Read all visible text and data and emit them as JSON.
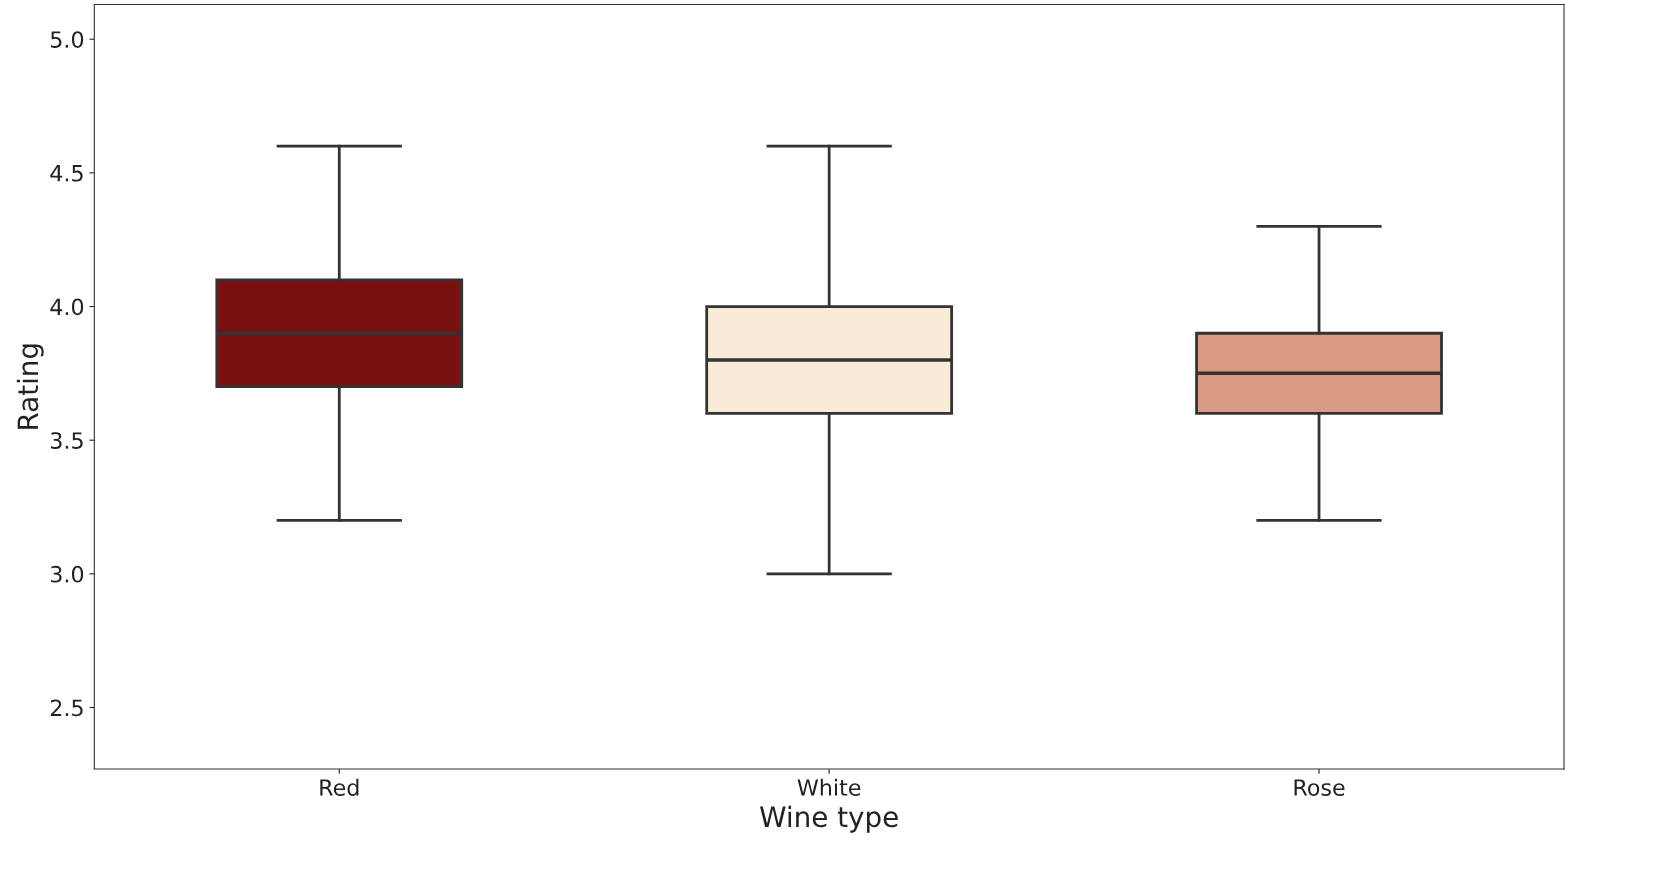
{
  "chart_data": {
    "type": "box",
    "xlabel": "Wine type",
    "ylabel": "Rating",
    "categories": [
      "Red",
      "White",
      "Rose"
    ],
    "colors": [
      "#7a1111",
      "#faebd7",
      "#da9b85"
    ],
    "boxes": [
      {
        "low": 3.2,
        "q1": 3.7,
        "median": 3.9,
        "q3": 4.1,
        "high": 4.6
      },
      {
        "low": 3.0,
        "q1": 3.6,
        "median": 3.8,
        "q3": 4.0,
        "high": 4.6
      },
      {
        "low": 3.2,
        "q1": 3.6,
        "median": 3.75,
        "q3": 3.9,
        "high": 4.3
      }
    ],
    "ylim": [
      2.27,
      5.13
    ],
    "yticks": [
      2.5,
      {
        "value": 3,
        "label": "3.0"
      },
      3.5,
      {
        "value": 4,
        "label": "4.0"
      },
      4.5,
      {
        "value": 5,
        "label": "5.0"
      }
    ],
    "grid": false
  }
}
